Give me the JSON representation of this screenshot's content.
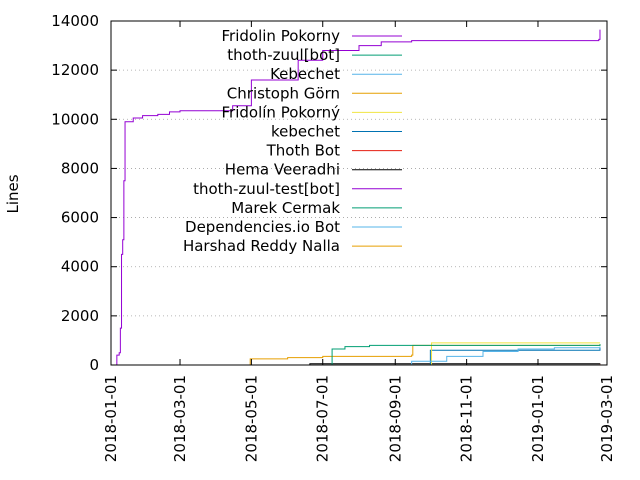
{
  "chart_data": {
    "type": "line",
    "title": "",
    "xlabel": "",
    "ylabel": "Lines",
    "ylim": [
      0,
      14000
    ],
    "xlim": [
      "2018-01-01",
      "2019-03-01"
    ],
    "yticks": [
      0,
      2000,
      4000,
      6000,
      8000,
      10000,
      12000,
      14000
    ],
    "yticklabels": [
      "0",
      "2000",
      "4000",
      "6000",
      "8000",
      "10000",
      "12000",
      "14000"
    ],
    "xticks": [
      "2018-01-01",
      "2018-03-01",
      "2018-05-01",
      "2018-07-01",
      "2018-09-01",
      "2018-11-01",
      "2019-01-01",
      "2019-03-01"
    ],
    "xticklabels": [
      "2018-01-01",
      "2018-03-01",
      "2018-05-01",
      "2018-07-01",
      "2018-09-01",
      "2018-11-01",
      "2019-01-01",
      "2019-03-01"
    ],
    "grid": "horizontal",
    "legend_position": "top-right",
    "series": [
      {
        "name": "Fridolin Pokorny",
        "color": "#9400d3",
        "points": [
          [
            "2018-01-05",
            0
          ],
          [
            "2018-01-06",
            400
          ],
          [
            "2018-01-08",
            500
          ],
          [
            "2018-01-09",
            1500
          ],
          [
            "2018-01-10",
            4500
          ],
          [
            "2018-01-11",
            5100
          ],
          [
            "2018-01-12",
            7500
          ],
          [
            "2018-01-13",
            9900
          ],
          [
            "2018-01-20",
            10050
          ],
          [
            "2018-01-28",
            10150
          ],
          [
            "2018-02-10",
            10200
          ],
          [
            "2018-02-20",
            10300
          ],
          [
            "2018-03-01",
            10350
          ],
          [
            "2018-04-15",
            10550
          ],
          [
            "2018-05-01",
            11600
          ],
          [
            "2018-06-10",
            12400
          ],
          [
            "2018-07-01",
            12800
          ],
          [
            "2018-08-01",
            13000
          ],
          [
            "2018-08-20",
            13150
          ],
          [
            "2018-09-15",
            13200
          ],
          [
            "2019-02-22",
            13250
          ],
          [
            "2019-02-23",
            13650
          ]
        ]
      },
      {
        "name": "thoth-zuul[bot]",
        "color": "#009e73",
        "points": [
          [
            "2018-07-08",
            0
          ],
          [
            "2018-07-09",
            650
          ],
          [
            "2018-07-20",
            750
          ],
          [
            "2018-08-10",
            800
          ],
          [
            "2019-02-23",
            850
          ]
        ]
      },
      {
        "name": "Kebechet",
        "color": "#56b4e9",
        "points": [
          [
            "2018-08-15",
            0
          ],
          [
            "2018-09-15",
            150
          ],
          [
            "2018-10-15",
            350
          ],
          [
            "2018-11-15",
            550
          ],
          [
            "2018-12-15",
            650
          ],
          [
            "2019-01-15",
            700
          ],
          [
            "2019-02-23",
            750
          ]
        ]
      },
      {
        "name": "Christoph Görn",
        "color": "#e69f00",
        "points": [
          [
            "2018-04-29",
            0
          ],
          [
            "2018-04-30",
            250
          ],
          [
            "2018-06-01",
            300
          ],
          [
            "2018-07-01",
            350
          ],
          [
            "2018-09-15",
            400
          ],
          [
            "2018-09-16",
            800
          ],
          [
            "2019-02-23",
            850
          ]
        ]
      },
      {
        "name": "Fridolín Pokorný",
        "color": "#f0e442",
        "points": [
          [
            "2018-10-01",
            0
          ],
          [
            "2018-10-02",
            900
          ],
          [
            "2019-02-23",
            900
          ]
        ]
      },
      {
        "name": "kebechet",
        "color": "#0072b2",
        "points": [
          [
            "2018-09-01",
            0
          ],
          [
            "2018-10-01",
            600
          ],
          [
            "2019-02-23",
            700
          ]
        ]
      },
      {
        "name": "Thoth Bot",
        "color": "#e51e10",
        "points": [
          [
            "2018-08-01",
            0
          ],
          [
            "2019-02-23",
            30
          ]
        ]
      },
      {
        "name": "Hema Veeradhi",
        "color": "#000000",
        "points": [
          [
            "2018-06-15",
            0
          ],
          [
            "2018-06-20",
            50
          ],
          [
            "2019-02-23",
            60
          ]
        ]
      },
      {
        "name": "thoth-zuul-test[bot]",
        "color": "#9400d3",
        "points": [
          [
            "2018-08-01",
            0
          ],
          [
            "2019-02-23",
            20
          ]
        ]
      },
      {
        "name": "Marek Cermak",
        "color": "#009e73",
        "points": [
          [
            "2018-08-01",
            0
          ],
          [
            "2019-02-23",
            20
          ]
        ]
      },
      {
        "name": "Dependencies.io Bot",
        "color": "#56b4e9",
        "points": [
          [
            "2018-08-01",
            0
          ],
          [
            "2019-02-23",
            20
          ]
        ]
      },
      {
        "name": "Harshad Reddy Nalla",
        "color": "#e69f00",
        "points": [
          [
            "2018-08-01",
            0
          ],
          [
            "2019-02-23",
            20
          ]
        ]
      }
    ]
  }
}
